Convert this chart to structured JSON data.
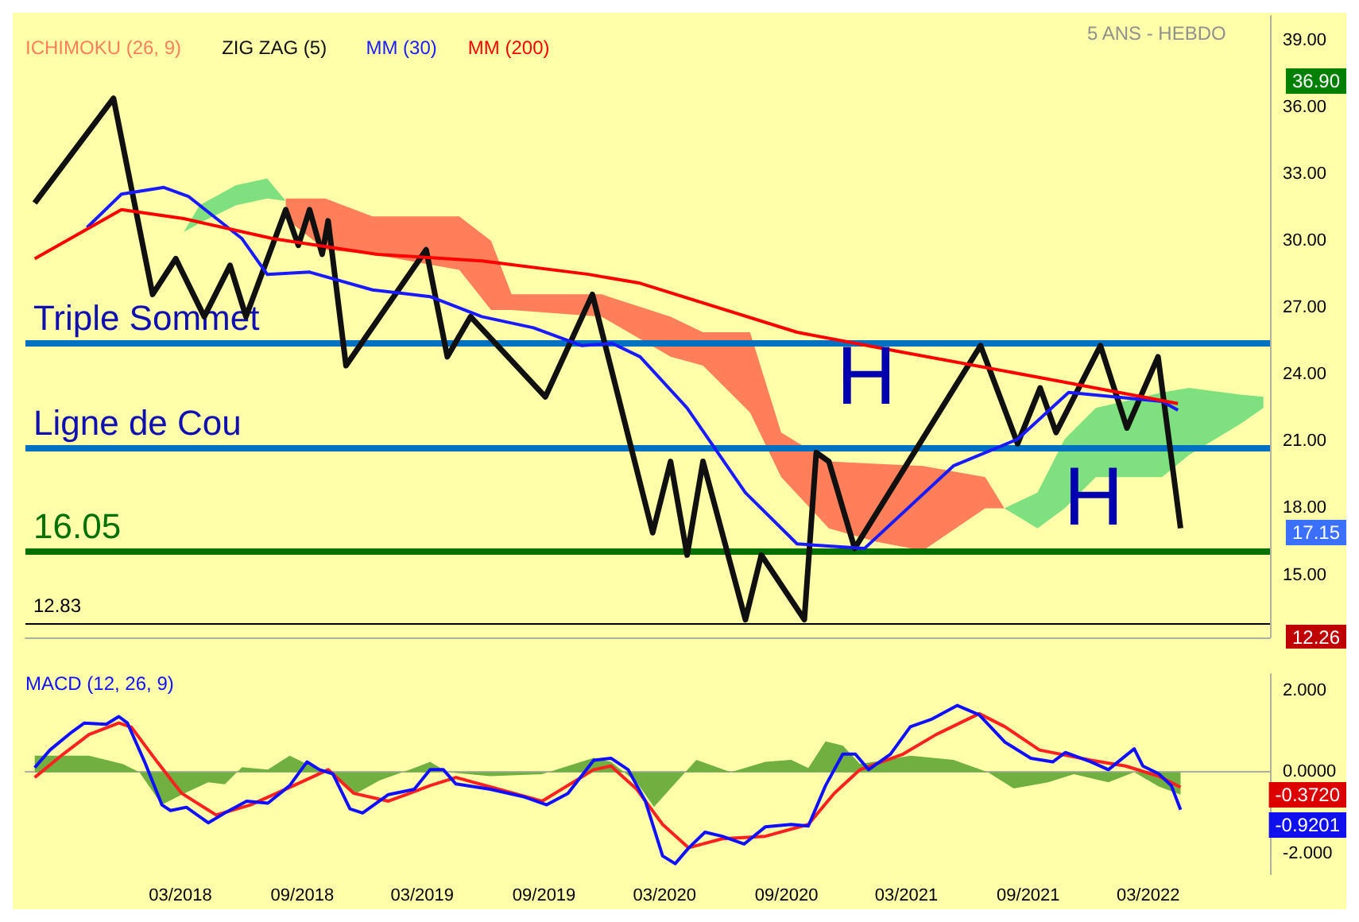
{
  "chart_data": [
    {
      "type": "line",
      "title": "5 ANS - HEBDO",
      "legend": "top left",
      "tick_labels": "y",
      "xlim": [
        "2017-07-10",
        "2022-09-01"
      ],
      "ylim": [
        12.2,
        40.1
      ],
      "yticks": [
        {
          "value": 15,
          "label": "15.00"
        },
        {
          "value": 18,
          "label": "18.00"
        },
        {
          "value": 21,
          "label": "21.00"
        },
        {
          "value": 24,
          "label": "24.00"
        },
        {
          "value": 27,
          "label": "27.00"
        },
        {
          "value": 30,
          "label": "30.00"
        },
        {
          "value": 33,
          "label": "33.00"
        },
        {
          "value": 36,
          "label": "36.00"
        },
        {
          "value": 39,
          "label": "39.00"
        }
      ],
      "series": [
        {
          "name": "ICHIMOKU (26, 9)",
          "type": "area",
          "color": "#ff7f5a",
          "x": [
            "2018-08-07",
            "2018-10-06",
            "2018-12-16",
            "2019-04-26",
            "2019-06-13",
            "2019-07-14",
            "2019-11-27",
            "2020-03-10",
            "2020-04-28",
            "2020-07-08",
            "2020-08-24",
            "2020-11-04",
            "2021-01-14",
            "2021-03-26",
            "2021-06-28",
            "2021-07-27"
          ],
          "values": [
            null,
            null,
            null,
            null,
            null,
            null,
            null,
            null,
            null,
            null,
            null,
            null,
            null,
            null,
            null,
            null
          ],
          "upper": [
            31.9,
            31.9,
            31.1,
            31.1,
            30.0,
            27.6,
            27.6,
            26.6,
            25.9,
            25.9,
            21.4,
            20.1,
            20.0,
            19.9,
            19.4,
            18.0
          ],
          "lower": [
            31.0,
            29.6,
            29.4,
            28.7,
            26.9,
            26.9,
            26.6,
            24.8,
            24.4,
            22.3,
            19.4,
            17.1,
            16.5,
            16.1,
            18.0,
            18.0
          ]
        },
        {
          "type": "area",
          "color": "#7ee07e",
          "x": [
            "2018-03-06",
            "2018-03-30",
            "2018-05-24",
            "2018-07-10",
            "2018-08-07",
            "2021-07-27",
            "2021-09-15",
            "2021-10-26",
            "2021-12-12",
            "2022-03-22",
            "2022-05-02",
            "2022-07-19",
            "2022-08-22"
          ],
          "values": [
            null,
            null,
            null,
            null,
            null,
            null,
            null,
            null,
            null,
            null,
            null,
            null,
            null
          ],
          "upper": [
            30.4,
            31.6,
            32.5,
            32.8,
            31.8,
            18.0,
            18.7,
            21.1,
            22.5,
            23.2,
            23.4,
            23.1,
            23.0
          ],
          "lower": [
            30.4,
            30.8,
            31.6,
            31.9,
            31.8,
            18.0,
            17.1,
            18.0,
            19.4,
            19.4,
            20.4,
            21.8,
            22.5
          ]
        },
        {
          "name": "ZIG ZAG (5)",
          "color": "#101010",
          "x": [
            "2017-07-24",
            "2017-11-20",
            "2018-01-18",
            "2018-02-22",
            "2018-04-06",
            "2018-05-15",
            "2018-06-08",
            "2018-08-07",
            "2018-08-26",
            "2018-09-12",
            "2018-10-01",
            "2018-10-10",
            "2018-11-06",
            "2019-03-07",
            "2019-04-08",
            "2019-05-13",
            "2019-09-03",
            "2019-11-13",
            "2020-02-12",
            "2020-03-10",
            "2020-04-04",
            "2020-04-28",
            "2020-07-01",
            "2020-07-25",
            "2020-09-28",
            "2020-10-16",
            "2020-11-04",
            "2020-12-13",
            "2021-06-21",
            "2021-08-16",
            "2021-09-19",
            "2021-10-13",
            "2021-12-19",
            "2022-01-28",
            "2022-03-16",
            "2022-04-19"
          ],
          "values": [
            31.7,
            36.4,
            27.6,
            29.2,
            26.6,
            28.9,
            26.6,
            31.4,
            29.8,
            31.4,
            29.4,
            30.9,
            24.4,
            29.6,
            24.8,
            26.6,
            23.0,
            27.6,
            16.9,
            20.1,
            15.9,
            20.1,
            13.0,
            15.9,
            13.0,
            20.5,
            20.1,
            16.2,
            25.3,
            20.9,
            23.4,
            21.4,
            25.3,
            21.6,
            24.8,
            17.1
          ]
        },
        {
          "name": "MM (30)",
          "color": "#1a1aff",
          "x": [
            "2017-10-11",
            "2017-12-02",
            "2018-02-04",
            "2018-03-13",
            "2018-06-02",
            "2018-07-10",
            "2018-09-12",
            "2018-12-16",
            "2019-03-13",
            "2019-05-30",
            "2019-08-16",
            "2019-10-28",
            "2019-12-13",
            "2020-01-24",
            "2020-04-04",
            "2020-07-01",
            "2020-09-17",
            "2020-12-28",
            "2021-05-11",
            "2021-08-16",
            "2021-11-01",
            "2022-03-22",
            "2022-04-15"
          ],
          "values": [
            30.6,
            32.1,
            32.4,
            32.0,
            30.1,
            28.5,
            28.6,
            27.8,
            27.5,
            26.6,
            26.1,
            25.3,
            25.4,
            24.8,
            22.5,
            18.7,
            16.4,
            16.2,
            19.9,
            21.1,
            23.2,
            22.8,
            22.4
          ]
        },
        {
          "name": "MM (200)",
          "color": "#ff0000",
          "x": [
            "2017-07-24",
            "2017-12-02",
            "2018-03-06",
            "2018-07-19",
            "2018-12-23",
            "2019-05-30",
            "2019-11-07",
            "2020-01-24",
            "2020-09-17",
            "2021-02-24",
            "2021-10-19",
            "2022-04-15"
          ],
          "values": [
            29.2,
            31.4,
            31.0,
            30.1,
            29.4,
            29.1,
            28.5,
            28.1,
            25.9,
            25.0,
            23.7,
            22.7
          ]
        }
      ],
      "ref_lines": [
        {
          "axis": "y",
          "value": 25.4,
          "label": "Triple Sommet",
          "color": "#0070c0"
        },
        {
          "axis": "y",
          "value": 20.7,
          "label": "Ligne de Cou",
          "color": "#0070c0"
        },
        {
          "axis": "y",
          "value": 16.05,
          "label": "16.05",
          "color": "#007000"
        },
        {
          "axis": "y",
          "value": 12.83,
          "label": "12.83",
          "color": "#000000"
        }
      ],
      "annotations": [
        "H",
        "H",
        "36.90",
        "17.15",
        "12.26"
      ]
    },
    {
      "type": "line",
      "legend": "top left",
      "xlim": [
        "2017-07-10",
        "2022-09-01"
      ],
      "xticks": [
        {
          "value": "2018-03-01",
          "label": "03/2018"
        },
        {
          "value": "2018-09-01",
          "label": "09/2018"
        },
        {
          "value": "2019-03-01",
          "label": "03/2019"
        },
        {
          "value": "2019-09-01",
          "label": "09/2019"
        },
        {
          "value": "2020-03-01",
          "label": "03/2020"
        },
        {
          "value": "2020-09-01",
          "label": "09/2020"
        },
        {
          "value": "2021-03-01",
          "label": "03/2021"
        },
        {
          "value": "2021-09-01",
          "label": "09/2021"
        },
        {
          "value": "2022-03-01",
          "label": "03/2022"
        }
      ],
      "ylim": [
        -2.5,
        2.4
      ],
      "yticks": [
        {
          "value": -2,
          "label": "-2.000"
        },
        {
          "value": 0,
          "label": "0.0000"
        },
        {
          "value": 2,
          "label": "2.000"
        }
      ],
      "series": [
        {
          "type": "area",
          "color": "#70b040",
          "x": [
            "2017-07-24",
            "2017-10-14",
            "2017-12-04",
            "2017-12-29",
            "2018-02-01",
            "2018-03-03",
            "2018-04-12",
            "2018-05-07",
            "2018-06-02",
            "2018-07-11",
            "2018-08-13",
            "2018-09-14",
            "2018-10-10",
            "2018-11-18",
            "2018-12-27",
            "2019-02-17",
            "2019-03-13",
            "2019-04-08",
            "2019-06-12",
            "2019-08-29",
            "2019-10-07",
            "2019-11-15",
            "2019-12-11",
            "2020-01-19",
            "2020-02-14",
            "2020-03-10",
            "2020-04-18",
            "2020-06-09",
            "2020-07-31",
            "2020-09-08",
            "2020-10-04",
            "2020-10-30",
            "2020-11-25",
            "2020-12-21",
            "2021-01-29",
            "2021-03-07",
            "2021-05-11",
            "2021-07-02",
            "2021-08-10",
            "2021-10-01",
            "2021-11-09",
            "2021-12-31",
            "2022-02-08",
            "2022-03-17",
            "2022-04-19"
          ],
          "values": [
            0.4,
            0.4,
            0.2,
            0.0,
            -0.8,
            -0.55,
            -0.25,
            -0.3,
            0.12,
            0.06,
            0.4,
            0.15,
            0.0,
            -0.55,
            -0.2,
            0.1,
            0.25,
            0.0,
            -0.1,
            -0.05,
            0.15,
            0.35,
            0.25,
            -0.25,
            -0.85,
            -0.4,
            0.3,
            0.0,
            0.25,
            0.3,
            0.1,
            0.75,
            0.65,
            0.2,
            0.3,
            0.4,
            0.3,
            0.0,
            -0.4,
            -0.25,
            -0.05,
            -0.25,
            0.0,
            -0.35,
            -0.55
          ]
        },
        {
          "color": "#ff2020",
          "x": [
            "2017-07-24",
            "2017-09-05",
            "2017-10-14",
            "2017-11-28",
            "2017-12-17",
            "2018-01-25",
            "2018-03-03",
            "2018-04-24",
            "2018-06-15",
            "2018-08-19",
            "2018-10-10",
            "2018-11-18",
            "2019-01-09",
            "2019-03-13",
            "2019-04-21",
            "2019-06-25",
            "2019-08-29",
            "2019-11-15",
            "2019-12-11",
            "2020-01-19",
            "2020-02-27",
            "2020-04-06",
            "2020-05-27",
            "2020-07-31",
            "2020-10-04",
            "2020-11-12",
            "2020-12-21",
            "2021-02-24",
            "2021-04-15",
            "2021-06-19",
            "2021-07-28",
            "2021-09-18",
            "2021-12-05",
            "2022-01-26",
            "2022-03-17",
            "2022-04-19"
          ],
          "values": [
            -0.13,
            0.44,
            0.92,
            1.2,
            1.1,
            0.25,
            -0.52,
            -1.05,
            -0.8,
            -0.33,
            0.06,
            -0.52,
            -0.71,
            -0.33,
            -0.13,
            -0.42,
            -0.71,
            0.06,
            0.15,
            -0.42,
            -1.28,
            -1.85,
            -1.63,
            -1.57,
            -1.28,
            -0.52,
            0.06,
            0.44,
            0.92,
            1.43,
            1.11,
            0.54,
            0.29,
            0.15,
            -0.1,
            -0.37
          ]
        },
        {
          "name": "MACD (12, 26, 9)",
          "color": "#1010ff",
          "x": [
            "2017-07-24",
            "2017-08-16",
            "2017-09-18",
            "2017-10-07",
            "2017-11-09",
            "2017-11-28",
            "2017-12-11",
            "2018-01-06",
            "2018-02-01",
            "2018-02-14",
            "2018-03-10",
            "2018-04-12",
            "2018-05-07",
            "2018-06-09",
            "2018-07-11",
            "2018-08-13",
            "2018-09-08",
            "2018-09-27",
            "2018-10-17",
            "2018-11-12",
            "2018-12-01",
            "2019-01-09",
            "2019-02-17",
            "2019-03-13",
            "2019-04-02",
            "2019-04-21",
            "2019-06-12",
            "2019-08-03",
            "2019-09-05",
            "2019-10-07",
            "2019-11-15",
            "2019-12-11",
            "2020-01-06",
            "2020-02-01",
            "2020-02-27",
            "2020-03-17",
            "2020-04-06",
            "2020-05-01",
            "2020-05-27",
            "2020-06-29",
            "2020-07-31",
            "2020-09-08",
            "2020-10-04",
            "2020-10-30",
            "2020-11-25",
            "2020-12-14",
            "2021-01-03",
            "2021-02-05",
            "2021-03-07",
            "2021-04-09",
            "2021-05-17",
            "2021-06-19",
            "2021-07-28",
            "2021-09-05",
            "2021-10-08",
            "2021-10-27",
            "2021-12-05",
            "2021-12-31",
            "2022-02-08",
            "2022-02-21",
            "2022-03-17",
            "2022-04-05",
            "2022-04-19"
          ],
          "values": [
            0.11,
            0.54,
            0.98,
            1.2,
            1.17,
            1.36,
            1.2,
            0.25,
            -0.8,
            -0.94,
            -0.86,
            -1.24,
            -1.0,
            -0.71,
            -0.76,
            -0.33,
            0.25,
            0.06,
            -0.04,
            -0.9,
            -1.0,
            -0.55,
            -0.42,
            0.06,
            0.06,
            -0.29,
            -0.42,
            -0.61,
            -0.8,
            -0.52,
            0.29,
            0.34,
            0.06,
            -0.71,
            -2.05,
            -2.24,
            -1.86,
            -1.47,
            -1.57,
            -1.76,
            -1.34,
            -1.28,
            -1.32,
            -0.33,
            0.44,
            0.44,
            0.06,
            0.44,
            1.11,
            1.3,
            1.63,
            1.4,
            0.73,
            0.34,
            0.25,
            0.48,
            0.25,
            0.06,
            0.57,
            0.15,
            -0.04,
            -0.33,
            -0.92
          ]
        }
      ],
      "annotations": [
        "-0.3720",
        "-0.9201"
      ]
    }
  ]
}
